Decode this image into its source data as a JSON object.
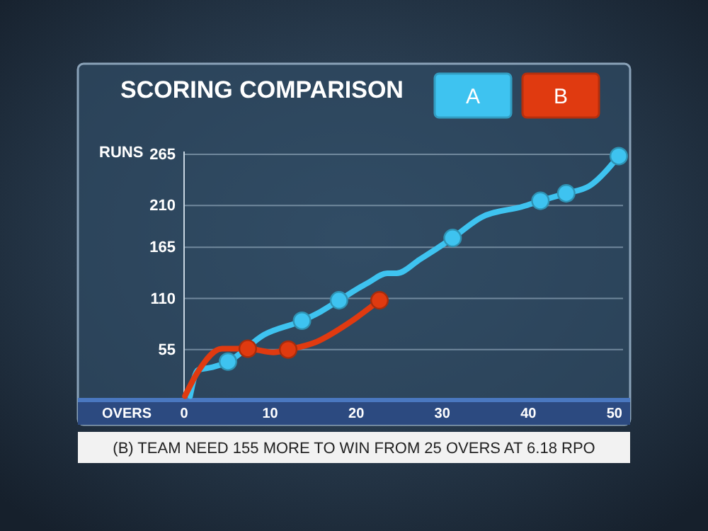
{
  "chart_data": {
    "type": "line",
    "title": "SCORING COMPARISON",
    "xlabel": "OVERS",
    "ylabel": "RUNS",
    "xlim": [
      0,
      51
    ],
    "xticks": [
      0,
      10,
      20,
      30,
      40,
      50
    ],
    "ylim": [
      0,
      268
    ],
    "yticks": [
      55,
      110,
      165,
      210,
      265
    ],
    "grid": "y",
    "legend": "top right",
    "marker": "none",
    "line_style": "solid",
    "series": [
      {
        "name": "A",
        "color": "#3ec3f0",
        "x": [
          0.7,
          1.6,
          3.3,
          5.1,
          9.3,
          13.7,
          15.9,
          18,
          21.4,
          23.6,
          24.7,
          27.4,
          31.2,
          34.5,
          39.4,
          41.4,
          44.4,
          47.1,
          50.5
        ],
        "values": [
          5,
          33,
          36,
          42,
          71,
          86,
          96,
          108,
          127,
          137,
          137,
          152,
          175,
          197,
          209,
          215,
          223,
          231,
          263
        ]
      },
      {
        "name": "B",
        "color": "#e03a10",
        "x": [
          0.1,
          1.6,
          4.4,
          7.4,
          10.4,
          12.1,
          15.3,
          19.2,
          22.7
        ],
        "values": [
          5,
          31,
          56,
          56,
          52,
          55,
          63,
          84,
          108
        ]
      },
      {
        "type": "scatter",
        "marker": "circle",
        "color": "#3ec3f0",
        "x": [
          5.1,
          13.7,
          18,
          31.2,
          41.4,
          44.4,
          50.5
        ],
        "values": [
          42,
          86,
          108,
          175,
          215,
          223,
          263
        ]
      },
      {
        "type": "scatter",
        "marker": "circle",
        "color": "#e03a10",
        "x": [
          7.4,
          12.1,
          22.7
        ],
        "values": [
          56,
          55,
          108
        ]
      }
    ],
    "annotations": [
      "(B) TEAM NEED 155 MORE TO WIN FROM 25 OVERS AT 6.18 RPO"
    ]
  }
}
